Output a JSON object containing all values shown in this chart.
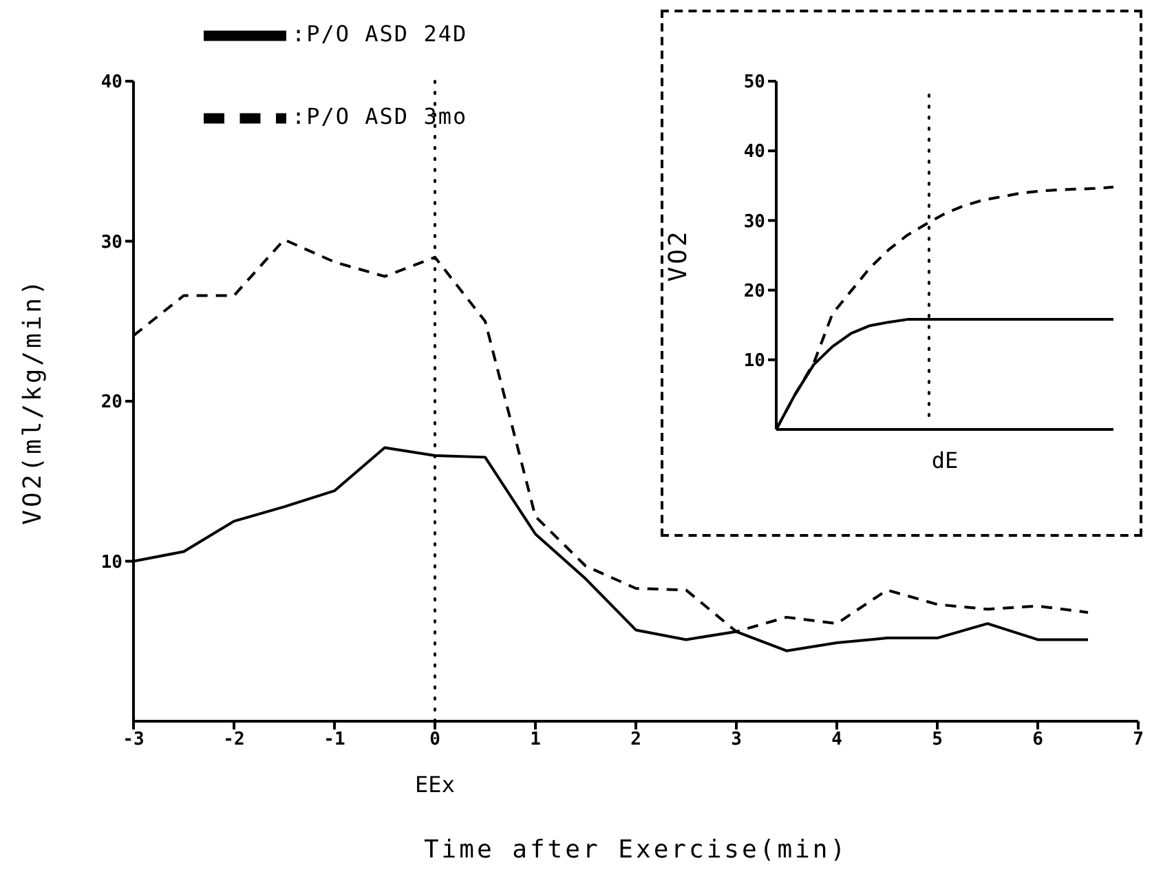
{
  "chart_data": [
    {
      "type": "line",
      "xlabel": "Time after Exercise(min)",
      "ylabel": "VO2(ml/kg/min)",
      "x": [
        -3,
        -2.5,
        -2,
        -1.5,
        -1,
        -0.5,
        0,
        0.5,
        1,
        1.5,
        2,
        2.5,
        3,
        3.5,
        4,
        4.5,
        5,
        5.5,
        6,
        6.5
      ],
      "series": [
        {
          "name": ":P/O ASD 24D",
          "color": "#000000",
          "line_style": "solid",
          "values": [
            10.0,
            10.6,
            12.5,
            13.4,
            14.4,
            17.1,
            16.6,
            16.5,
            11.7,
            8.9,
            5.7,
            5.1,
            5.6,
            4.4,
            4.9,
            5.2,
            5.2,
            6.1,
            5.1,
            5.1
          ]
        },
        {
          "name": ":P/O ASD 3mo",
          "color": "#000000",
          "line_style": "dashed",
          "values": [
            24.1,
            26.6,
            26.6,
            30.1,
            28.7,
            27.8,
            29.0,
            25.0,
            12.8,
            9.7,
            8.3,
            8.2,
            5.6,
            6.5,
            6.1,
            8.2,
            7.3,
            7.0,
            7.2,
            6.8
          ]
        }
      ],
      "xlim": [
        -3,
        7
      ],
      "xticks": [
        -3,
        -2,
        -1,
        0,
        1,
        2,
        3,
        4,
        5,
        6,
        7
      ],
      "ylim": [
        0,
        40
      ],
      "yticks": [
        10,
        20,
        30,
        40
      ],
      "ref_lines": [
        {
          "axis": "x",
          "value": 0,
          "label": "EEx",
          "line_style": "dotted"
        }
      ],
      "grid": false,
      "legend": "top left"
    },
    {
      "type": "line",
      "xlabel": "dE",
      "ylabel": "VO2",
      "categories": [
        null,
        null,
        null,
        null,
        null,
        null,
        null,
        null,
        null,
        null,
        null,
        null,
        null,
        null,
        null,
        null,
        null,
        null,
        null
      ],
      "series": [
        {
          "color": "#000000",
          "line_style": "solid",
          "values": [
            0,
            5.0,
            9.3,
            11.9,
            13.8,
            14.9,
            15.4,
            15.8,
            15.8,
            15.8,
            15.8,
            15.8,
            15.8,
            15.8,
            15.8,
            15.8,
            15.8,
            15.8,
            15.8
          ]
        },
        {
          "color": "#000000",
          "line_style": "dashed",
          "values": [
            0,
            5.0,
            9.5,
            16.6,
            19.9,
            23.2,
            25.8,
            27.9,
            29.5,
            31.0,
            32.1,
            32.9,
            33.4,
            33.9,
            34.2,
            34.4,
            34.5,
            34.6,
            34.8
          ]
        }
      ],
      "ylim": [
        0,
        50
      ],
      "yticks": [
        10,
        20,
        30,
        40,
        50
      ],
      "tick_labels": "y",
      "grid": false,
      "legend": false
    }
  ]
}
